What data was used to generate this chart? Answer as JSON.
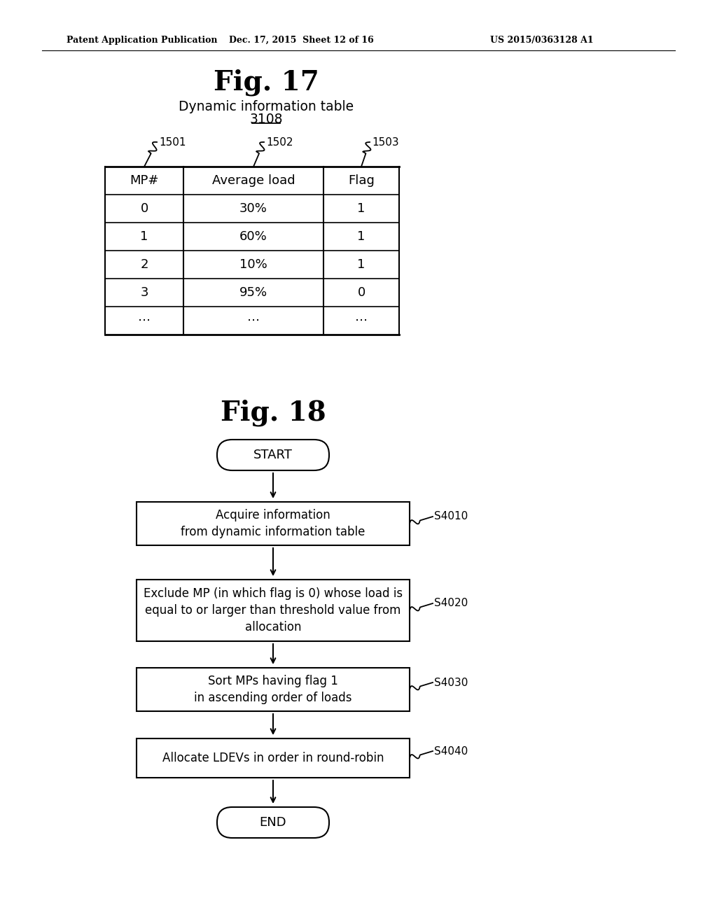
{
  "bg_color": "#ffffff",
  "header_text_left": "Patent Application Publication",
  "header_text_mid": "Dec. 17, 2015  Sheet 12 of 16",
  "header_text_right": "US 2015/0363128 A1",
  "fig17_title": "Fig. 17",
  "fig17_subtitle": "Dynamic information table",
  "fig17_ref": "3108",
  "table_col_labels": [
    "MP#",
    "Average load",
    "Flag"
  ],
  "table_col_refs": [
    "1501",
    "1502",
    "1503"
  ],
  "table_rows": [
    [
      "0",
      "30%",
      "1"
    ],
    [
      "1",
      "60%",
      "1"
    ],
    [
      "2",
      "10%",
      "1"
    ],
    [
      "3",
      "95%",
      "0"
    ],
    [
      "⋯",
      "⋯",
      "⋯"
    ]
  ],
  "fig18_title": "Fig. 18",
  "node_labels": [
    "START",
    "Acquire information\nfrom dynamic information table",
    "Exclude MP (in which flag is 0) whose load is\nequal to or larger than threshold value from\nallocation",
    "Sort MPs having flag 1\nin ascending order of loads",
    "Allocate LDEVs in order in round-robin",
    "END"
  ],
  "node_refs": [
    "",
    "S4010",
    "S4020",
    "S4030",
    "S4040",
    ""
  ],
  "text_color": "#000000",
  "line_color": "#000000"
}
